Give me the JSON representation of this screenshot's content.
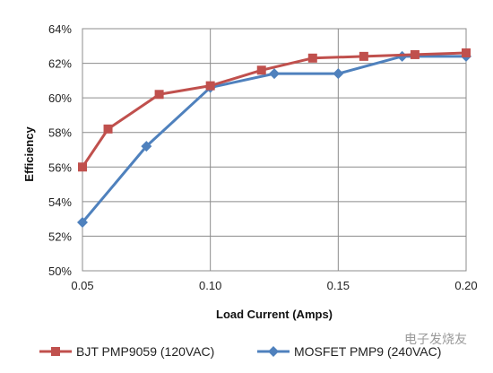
{
  "chart_data": {
    "type": "line",
    "title": "",
    "xlabel": "Load Current (Amps)",
    "ylabel": "Efficiency",
    "xlim": [
      0.05,
      0.2
    ],
    "ylim": [
      50,
      64
    ],
    "x_ticks": [
      "0.05",
      "0.10",
      "0.15",
      "0.20"
    ],
    "x_tick_values": [
      0.05,
      0.1,
      0.15,
      0.2
    ],
    "y_ticks": [
      "50%",
      "52%",
      "54%",
      "56%",
      "58%",
      "60%",
      "62%",
      "64%"
    ],
    "y_tick_values": [
      50,
      52,
      54,
      56,
      58,
      60,
      62,
      64
    ],
    "grid": true,
    "legend_position": "bottom",
    "series": [
      {
        "name": "BJT PMP9059 (120VAC)",
        "color": "#c0504d",
        "marker": "square",
        "x": [
          0.05,
          0.06,
          0.08,
          0.1,
          0.12,
          0.14,
          0.16,
          0.18,
          0.2
        ],
        "y": [
          56.0,
          58.2,
          60.2,
          60.7,
          61.6,
          62.3,
          62.4,
          62.5,
          62.6
        ]
      },
      {
        "name": "MOSFET PMP9 (240VAC)",
        "color": "#4f81bd",
        "marker": "diamond",
        "x": [
          0.05,
          0.075,
          0.1,
          0.125,
          0.15,
          0.175,
          0.2
        ],
        "y": [
          52.8,
          57.2,
          60.6,
          61.4,
          61.4,
          62.4,
          62.4
        ]
      }
    ]
  },
  "watermark": "电子发烧友"
}
